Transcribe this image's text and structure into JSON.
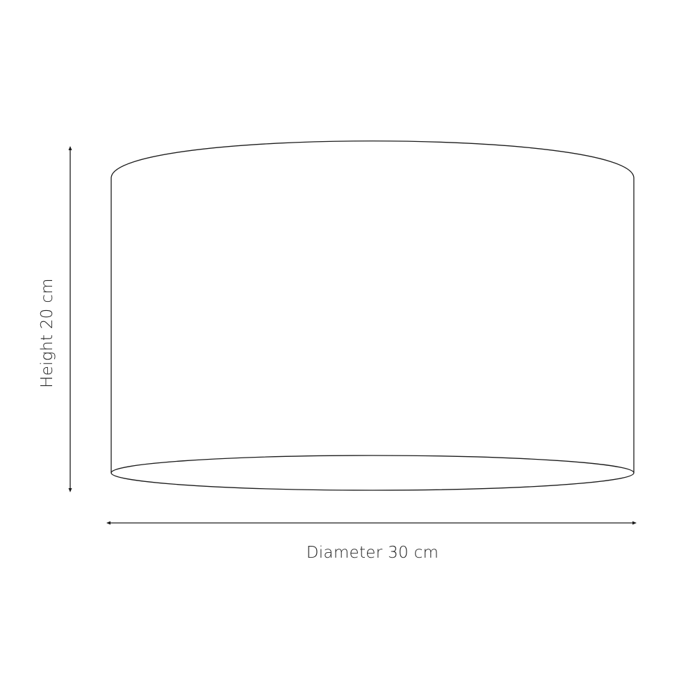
{
  "diagram": {
    "height_label": "Height 20 cm",
    "diameter_label": "Diameter 30 cm",
    "dimensions": {
      "height": {
        "value": 20,
        "unit": "cm"
      },
      "diameter": {
        "value": 30,
        "unit": "cm"
      }
    },
    "colors": {
      "line": "#1a1a1a",
      "text": "#222222",
      "background": "#ffffff"
    }
  }
}
